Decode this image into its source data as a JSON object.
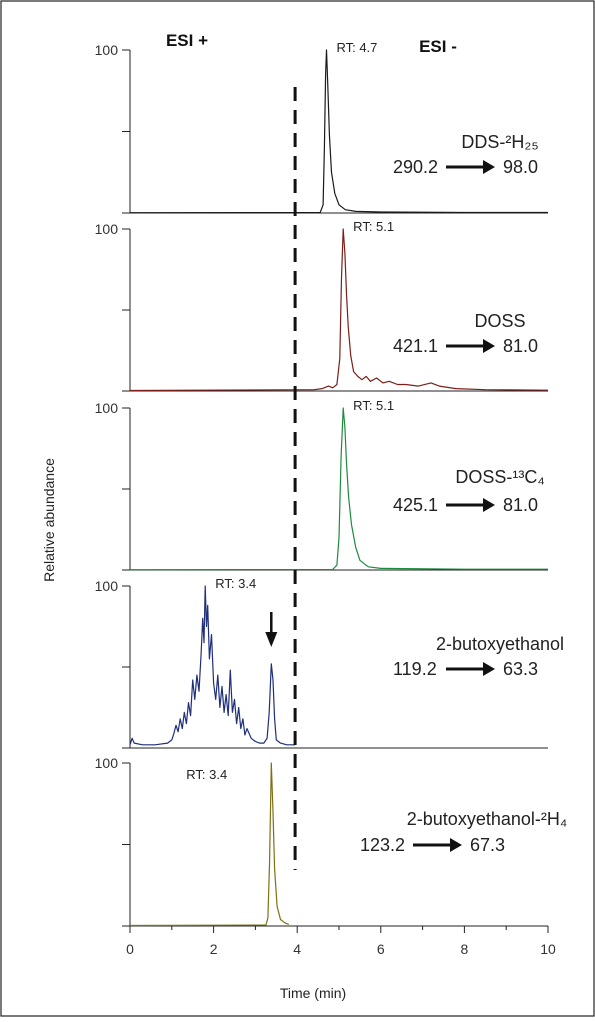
{
  "chart_data": {
    "type": "line",
    "xlabel": "Time (min)",
    "ylabel": "Relative abundance",
    "xlim": [
      0,
      10
    ],
    "xticks": [
      "0",
      "2",
      "4",
      "6",
      "8",
      "10"
    ],
    "ylim": [
      0,
      100
    ],
    "y_top_tick": "100",
    "divider_x": 3.95,
    "mode_labels": {
      "left": "ESI +",
      "right": "ESI -"
    },
    "panels": [
      {
        "compound": "DDS-²H₂₅",
        "transition_from": "290.2",
        "transition_to": "98.0",
        "rt_label": "RT: 4.7",
        "color": "#1a1a1a",
        "trace": [
          [
            0,
            0.2
          ],
          [
            4.55,
            0.3
          ],
          [
            4.62,
            5
          ],
          [
            4.65,
            40
          ],
          [
            4.68,
            85
          ],
          [
            4.7,
            100
          ],
          [
            4.73,
            80
          ],
          [
            4.77,
            48
          ],
          [
            4.82,
            25
          ],
          [
            4.9,
            12
          ],
          [
            5.0,
            5
          ],
          [
            5.15,
            2
          ],
          [
            5.4,
            1
          ],
          [
            6,
            0.6
          ],
          [
            8,
            0.3
          ],
          [
            10,
            0.3
          ]
        ]
      },
      {
        "compound": "DOSS",
        "transition_from": "421.1",
        "transition_to": "81.0",
        "rt_label": "RT: 5.1",
        "color": "#7a1f1a",
        "trace": [
          [
            0,
            0.3
          ],
          [
            4.4,
            0.8
          ],
          [
            4.6,
            1.5
          ],
          [
            4.75,
            3
          ],
          [
            4.85,
            2
          ],
          [
            4.95,
            4
          ],
          [
            5.02,
            20
          ],
          [
            5.06,
            70
          ],
          [
            5.1,
            100
          ],
          [
            5.14,
            85
          ],
          [
            5.18,
            60
          ],
          [
            5.22,
            40
          ],
          [
            5.28,
            22
          ],
          [
            5.35,
            12
          ],
          [
            5.45,
            9
          ],
          [
            5.55,
            7
          ],
          [
            5.65,
            9
          ],
          [
            5.75,
            6
          ],
          [
            5.9,
            8
          ],
          [
            6.05,
            5
          ],
          [
            6.2,
            6
          ],
          [
            6.4,
            4
          ],
          [
            6.6,
            4
          ],
          [
            6.9,
            3
          ],
          [
            7.2,
            5
          ],
          [
            7.4,
            3
          ],
          [
            7.8,
            1.5
          ],
          [
            8.5,
            0.8
          ],
          [
            10,
            0.5
          ]
        ]
      },
      {
        "compound": "DOSS-¹³C₄",
        "transition_from": "425.1",
        "transition_to": "81.0",
        "rt_label": "RT: 5.1",
        "color": "#1f8a3e",
        "trace": [
          [
            0,
            0.2
          ],
          [
            4.85,
            0.3
          ],
          [
            4.95,
            3
          ],
          [
            5.0,
            20
          ],
          [
            5.05,
            70
          ],
          [
            5.1,
            100
          ],
          [
            5.14,
            88
          ],
          [
            5.18,
            66
          ],
          [
            5.23,
            45
          ],
          [
            5.3,
            28
          ],
          [
            5.4,
            14
          ],
          [
            5.5,
            6
          ],
          [
            5.7,
            2
          ],
          [
            6,
            1
          ],
          [
            8,
            0.5
          ],
          [
            10,
            0.5
          ]
        ]
      },
      {
        "compound": "2-butoxyethanol",
        "transition_from": "119.2",
        "transition_to": "63.3",
        "rt_label": "RT: 3.4",
        "color": "#1f2f7a",
        "arrow": true,
        "trace": [
          [
            0,
            2
          ],
          [
            0.05,
            6
          ],
          [
            0.1,
            3
          ],
          [
            0.3,
            2
          ],
          [
            0.6,
            2
          ],
          [
            0.9,
            3
          ],
          [
            1.0,
            5
          ],
          [
            1.05,
            9
          ],
          [
            1.1,
            14
          ],
          [
            1.15,
            10
          ],
          [
            1.2,
            18
          ],
          [
            1.25,
            12
          ],
          [
            1.3,
            22
          ],
          [
            1.35,
            15
          ],
          [
            1.4,
            28
          ],
          [
            1.45,
            20
          ],
          [
            1.5,
            42
          ],
          [
            1.55,
            30
          ],
          [
            1.6,
            45
          ],
          [
            1.65,
            35
          ],
          [
            1.7,
            58
          ],
          [
            1.74,
            80
          ],
          [
            1.77,
            65
          ],
          [
            1.8,
            100
          ],
          [
            1.83,
            75
          ],
          [
            1.86,
            88
          ],
          [
            1.9,
            55
          ],
          [
            1.95,
            70
          ],
          [
            2.0,
            40
          ],
          [
            2.05,
            30
          ],
          [
            2.1,
            45
          ],
          [
            2.15,
            25
          ],
          [
            2.2,
            38
          ],
          [
            2.25,
            22
          ],
          [
            2.3,
            33
          ],
          [
            2.35,
            20
          ],
          [
            2.4,
            48
          ],
          [
            2.45,
            22
          ],
          [
            2.5,
            30
          ],
          [
            2.55,
            15
          ],
          [
            2.6,
            25
          ],
          [
            2.65,
            12
          ],
          [
            2.7,
            18
          ],
          [
            2.75,
            8
          ],
          [
            2.8,
            12
          ],
          [
            2.9,
            6
          ],
          [
            3.0,
            4
          ],
          [
            3.1,
            3
          ],
          [
            3.2,
            3
          ],
          [
            3.28,
            6
          ],
          [
            3.33,
            22
          ],
          [
            3.38,
            52
          ],
          [
            3.42,
            42
          ],
          [
            3.46,
            18
          ],
          [
            3.5,
            5
          ],
          [
            3.6,
            3
          ],
          [
            3.75,
            2
          ],
          [
            3.95,
            2
          ]
        ]
      },
      {
        "compound": "2-butoxyethanol-²H₄",
        "transition_from": "123.2",
        "transition_to": "67.3",
        "rt_label": "RT: 3.4",
        "color": "#7a7214",
        "trace": [
          [
            0,
            0.3
          ],
          [
            3.25,
            0.6
          ],
          [
            3.3,
            5
          ],
          [
            3.34,
            40
          ],
          [
            3.38,
            100
          ],
          [
            3.42,
            70
          ],
          [
            3.46,
            35
          ],
          [
            3.52,
            12
          ],
          [
            3.6,
            4
          ],
          [
            3.7,
            2
          ],
          [
            3.8,
            1
          ]
        ]
      }
    ]
  }
}
